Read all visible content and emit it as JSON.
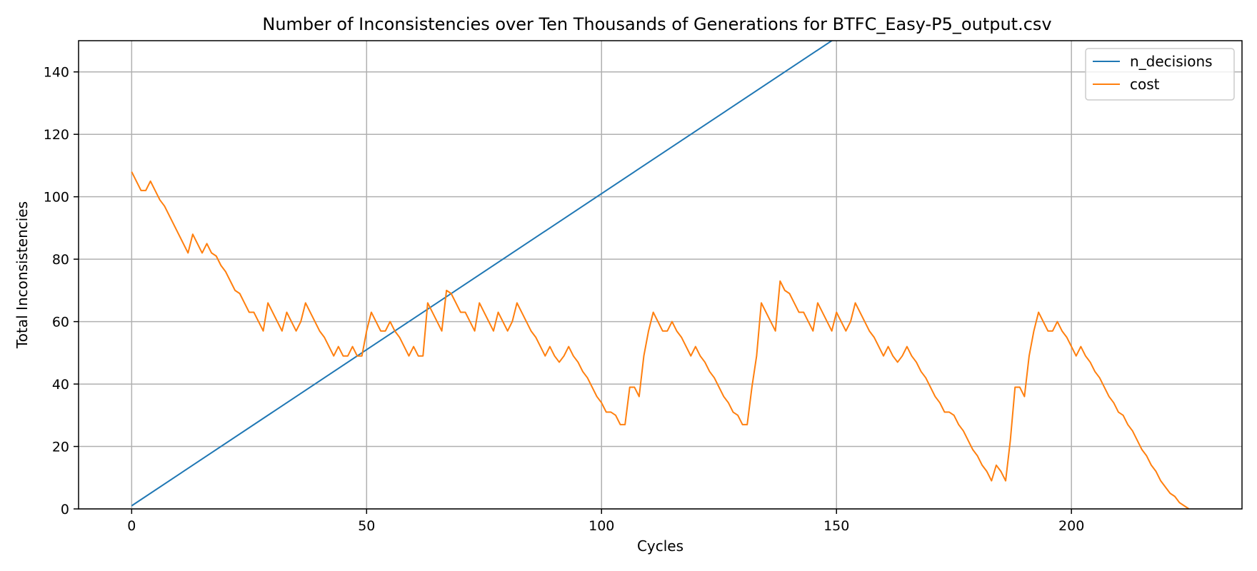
{
  "chart_data": {
    "type": "line",
    "title": "Number of Inconsistencies over Ten Thousands of Generations for BTFC_Easy-P5_output.csv",
    "xlabel": "Cycles",
    "ylabel": "Total Inconsistencies",
    "xlim": [
      -11.3,
      236.3
    ],
    "ylim": [
      0,
      150
    ],
    "xticks": [
      0,
      50,
      100,
      150,
      200
    ],
    "yticks": [
      0,
      20,
      40,
      60,
      80,
      100,
      120,
      140
    ],
    "grid": true,
    "legend_position": "top-right",
    "series": [
      {
        "name": "n_decisions",
        "color": "#1f77b4",
        "points": [
          [
            0,
            1
          ],
          [
            150,
            151
          ]
        ]
      },
      {
        "name": "cost",
        "color": "#ff7f0e",
        "points": [
          [
            0,
            108
          ],
          [
            1,
            105
          ],
          [
            2,
            102
          ],
          [
            3,
            102
          ],
          [
            4,
            105
          ],
          [
            5,
            102
          ],
          [
            6,
            99
          ],
          [
            7,
            97
          ],
          [
            8,
            94
          ],
          [
            9,
            91
          ],
          [
            10,
            88
          ],
          [
            11,
            85
          ],
          [
            12,
            82
          ],
          [
            13,
            88
          ],
          [
            14,
            85
          ],
          [
            15,
            82
          ],
          [
            16,
            85
          ],
          [
            17,
            82
          ],
          [
            18,
            81
          ],
          [
            19,
            78
          ],
          [
            20,
            76
          ],
          [
            21,
            73
          ],
          [
            22,
            70
          ],
          [
            23,
            69
          ],
          [
            24,
            66
          ],
          [
            25,
            63
          ],
          [
            26,
            63
          ],
          [
            27,
            60
          ],
          [
            28,
            57
          ],
          [
            29,
            66
          ],
          [
            30,
            63
          ],
          [
            31,
            60
          ],
          [
            32,
            57
          ],
          [
            33,
            63
          ],
          [
            34,
            60
          ],
          [
            35,
            57
          ],
          [
            36,
            60
          ],
          [
            37,
            66
          ],
          [
            38,
            63
          ],
          [
            39,
            60
          ],
          [
            40,
            57
          ],
          [
            41,
            55
          ],
          [
            42,
            52
          ],
          [
            43,
            49
          ],
          [
            44,
            52
          ],
          [
            45,
            49
          ],
          [
            46,
            49
          ],
          [
            47,
            52
          ],
          [
            48,
            49
          ],
          [
            49,
            49
          ],
          [
            50,
            57
          ],
          [
            51,
            63
          ],
          [
            52,
            60
          ],
          [
            53,
            57
          ],
          [
            54,
            57
          ],
          [
            55,
            60
          ],
          [
            56,
            57
          ],
          [
            57,
            55
          ],
          [
            58,
            52
          ],
          [
            59,
            49
          ],
          [
            60,
            52
          ],
          [
            61,
            49
          ],
          [
            62,
            49
          ],
          [
            63,
            66
          ],
          [
            64,
            63
          ],
          [
            65,
            60
          ],
          [
            66,
            57
          ],
          [
            67,
            70
          ],
          [
            68,
            69
          ],
          [
            69,
            66
          ],
          [
            70,
            63
          ],
          [
            71,
            63
          ],
          [
            72,
            60
          ],
          [
            73,
            57
          ],
          [
            74,
            66
          ],
          [
            75,
            63
          ],
          [
            76,
            60
          ],
          [
            77,
            57
          ],
          [
            78,
            63
          ],
          [
            79,
            60
          ],
          [
            80,
            57
          ],
          [
            81,
            60
          ],
          [
            82,
            66
          ],
          [
            83,
            63
          ],
          [
            84,
            60
          ],
          [
            85,
            57
          ],
          [
            86,
            55
          ],
          [
            87,
            52
          ],
          [
            88,
            49
          ],
          [
            89,
            52
          ],
          [
            90,
            49
          ],
          [
            91,
            47
          ],
          [
            92,
            49
          ],
          [
            93,
            52
          ],
          [
            94,
            49
          ],
          [
            95,
            47
          ],
          [
            96,
            44
          ],
          [
            97,
            42
          ],
          [
            98,
            39
          ],
          [
            99,
            36
          ],
          [
            100,
            34
          ],
          [
            101,
            31
          ],
          [
            102,
            31
          ],
          [
            103,
            30
          ],
          [
            104,
            27
          ],
          [
            105,
            27
          ],
          [
            106,
            39
          ],
          [
            107,
            39
          ],
          [
            108,
            36
          ],
          [
            109,
            49
          ],
          [
            110,
            57
          ],
          [
            111,
            63
          ],
          [
            112,
            60
          ],
          [
            113,
            57
          ],
          [
            114,
            57
          ],
          [
            115,
            60
          ],
          [
            116,
            57
          ],
          [
            117,
            55
          ],
          [
            118,
            52
          ],
          [
            119,
            49
          ],
          [
            120,
            52
          ],
          [
            121,
            49
          ],
          [
            122,
            47
          ],
          [
            123,
            44
          ],
          [
            124,
            42
          ],
          [
            125,
            39
          ],
          [
            126,
            36
          ],
          [
            127,
            34
          ],
          [
            128,
            31
          ],
          [
            129,
            30
          ],
          [
            130,
            27
          ],
          [
            131,
            27
          ],
          [
            132,
            39
          ],
          [
            133,
            49
          ],
          [
            134,
            66
          ],
          [
            135,
            63
          ],
          [
            136,
            60
          ],
          [
            137,
            57
          ],
          [
            138,
            73
          ],
          [
            139,
            70
          ],
          [
            140,
            69
          ],
          [
            141,
            66
          ],
          [
            142,
            63
          ],
          [
            143,
            63
          ],
          [
            144,
            60
          ],
          [
            145,
            57
          ],
          [
            146,
            66
          ],
          [
            147,
            63
          ],
          [
            148,
            60
          ],
          [
            149,
            57
          ],
          [
            150,
            63
          ],
          [
            151,
            60
          ],
          [
            152,
            57
          ],
          [
            153,
            60
          ],
          [
            154,
            66
          ],
          [
            155,
            63
          ],
          [
            156,
            60
          ],
          [
            157,
            57
          ],
          [
            158,
            55
          ],
          [
            159,
            52
          ],
          [
            160,
            49
          ],
          [
            161,
            52
          ],
          [
            162,
            49
          ],
          [
            163,
            47
          ],
          [
            164,
            49
          ],
          [
            165,
            52
          ],
          [
            166,
            49
          ],
          [
            167,
            47
          ],
          [
            168,
            44
          ],
          [
            169,
            42
          ],
          [
            170,
            39
          ],
          [
            171,
            36
          ],
          [
            172,
            34
          ],
          [
            173,
            31
          ],
          [
            174,
            31
          ],
          [
            175,
            30
          ],
          [
            176,
            27
          ],
          [
            177,
            25
          ],
          [
            178,
            22
          ],
          [
            179,
            19
          ],
          [
            180,
            17
          ],
          [
            181,
            14
          ],
          [
            182,
            12
          ],
          [
            183,
            9
          ],
          [
            184,
            14
          ],
          [
            185,
            12
          ],
          [
            186,
            9
          ],
          [
            187,
            22
          ],
          [
            188,
            39
          ],
          [
            189,
            39
          ],
          [
            190,
            36
          ],
          [
            191,
            49
          ],
          [
            192,
            57
          ],
          [
            193,
            63
          ],
          [
            194,
            60
          ],
          [
            195,
            57
          ],
          [
            196,
            57
          ],
          [
            197,
            60
          ],
          [
            198,
            57
          ],
          [
            199,
            55
          ],
          [
            200,
            52
          ],
          [
            201,
            49
          ],
          [
            202,
            52
          ],
          [
            203,
            49
          ],
          [
            204,
            47
          ],
          [
            205,
            44
          ],
          [
            206,
            42
          ],
          [
            207,
            39
          ],
          [
            208,
            36
          ],
          [
            209,
            34
          ],
          [
            210,
            31
          ],
          [
            211,
            30
          ],
          [
            212,
            27
          ],
          [
            213,
            25
          ],
          [
            214,
            22
          ],
          [
            215,
            19
          ],
          [
            216,
            17
          ],
          [
            217,
            14
          ],
          [
            218,
            12
          ],
          [
            219,
            9
          ],
          [
            220,
            7
          ],
          [
            221,
            5
          ],
          [
            222,
            4
          ],
          [
            223,
            2
          ],
          [
            224,
            1
          ],
          [
            225,
            0
          ]
        ]
      }
    ]
  }
}
